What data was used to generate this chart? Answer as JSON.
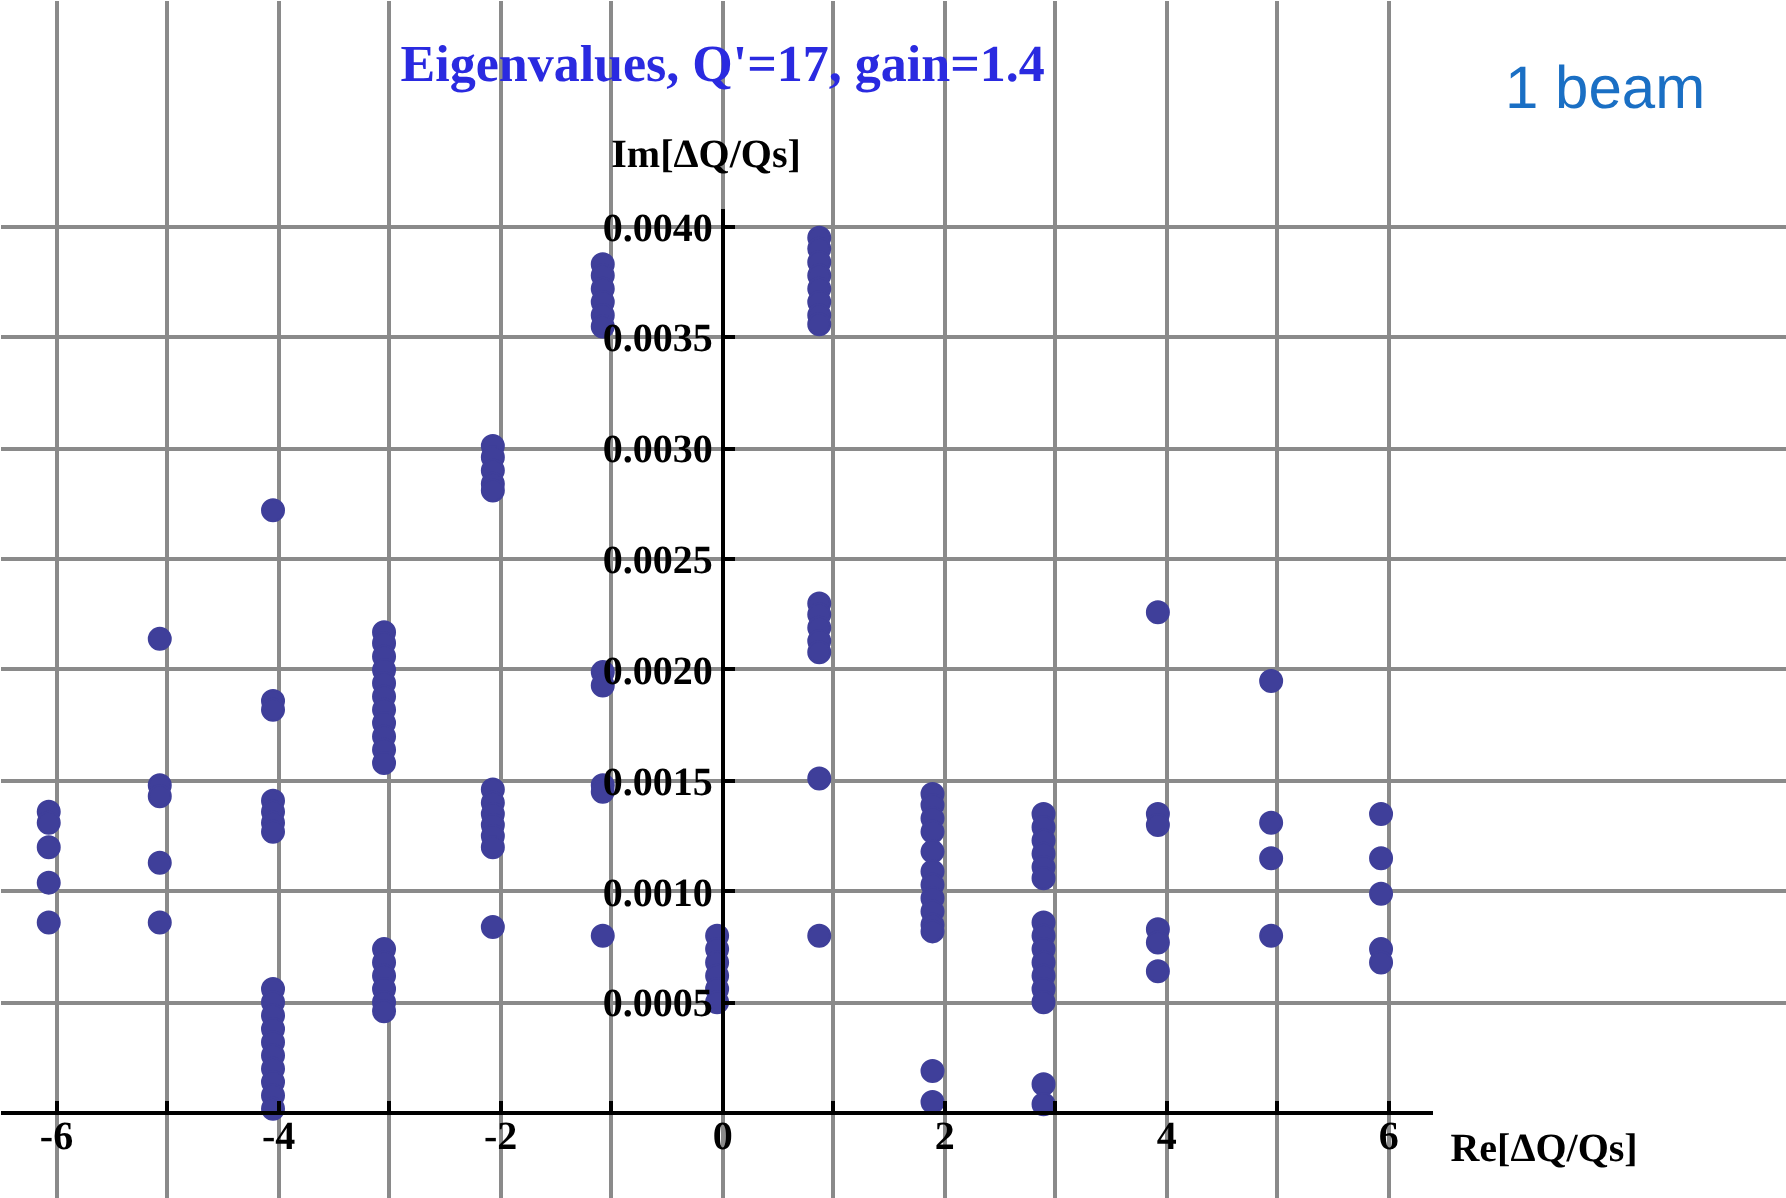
{
  "chart_data": {
    "type": "scatter",
    "title": "Eigenvalues, Q'=17, gain=1.4",
    "xlabel": "Re[ΔQ/Qs]",
    "ylabel": "Im[ΔQ/Qs]",
    "annotations": [
      "1 beam"
    ],
    "xlim": [
      -6.5,
      6.4
    ],
    "ylim": [
      0,
      0.00408
    ],
    "xticks": [
      -6,
      {
        "value": -5,
        "label": null
      },
      -4,
      {
        "value": -3,
        "label": null
      },
      -2,
      {
        "value": -1,
        "label": null
      },
      0,
      {
        "value": 1,
        "label": null
      },
      2,
      {
        "value": 3,
        "label": null
      },
      4,
      {
        "value": 5,
        "label": null
      },
      6
    ],
    "yticks": [
      {
        "value": 0.0005,
        "label": "0.0005"
      },
      {
        "value": 0.001,
        "label": "0.0010"
      },
      {
        "value": 0.0015,
        "label": "0.0015"
      },
      {
        "value": 0.002,
        "label": "0.0020"
      },
      {
        "value": 0.0025,
        "label": "0.0025"
      },
      {
        "value": 0.003,
        "label": "0.0030"
      },
      {
        "value": 0.0035,
        "label": "0.0035"
      },
      {
        "value": 0.004,
        "label": "0.0040"
      }
    ],
    "grid": true,
    "marker": "circle",
    "series": [
      {
        "color": "#3f3f9a",
        "x": [
          -6.07,
          -6.07,
          -6.07,
          -6.07,
          -6.07,
          -5.07,
          -5.07,
          -5.07,
          -5.07,
          -5.07,
          -4.05,
          -4.05,
          -4.05,
          -4.05,
          -4.05,
          -4.05,
          -4.05,
          -4.05,
          -4.05,
          -4.05,
          -4.05,
          -4.05,
          -4.05,
          -4.05,
          -4.05,
          -4.05,
          -4.05,
          -3.05,
          -3.05,
          -3.05,
          -3.05,
          -3.05,
          -3.05,
          -3.05,
          -3.05,
          -3.05,
          -3.05,
          -3.05,
          -3.05,
          -3.05,
          -3.05,
          -3.05,
          -3.05,
          -3.05,
          -2.07,
          -2.07,
          -2.07,
          -2.07,
          -2.07,
          -2.07,
          -2.07,
          -2.07,
          -2.07,
          -2.07,
          -2.07,
          -2.07,
          -1.08,
          -1.08,
          -1.08,
          -1.08,
          -1.08,
          -1.08,
          -1.08,
          -1.08,
          -1.08,
          -1.08,
          -1.08,
          -0.05,
          -0.05,
          -0.05,
          -0.05,
          -0.05,
          -0.05,
          0.87,
          0.87,
          0.87,
          0.87,
          0.87,
          0.87,
          0.87,
          0.87,
          0.87,
          0.87,
          0.87,
          0.87,
          0.87,
          0.87,
          0.87,
          1.89,
          1.89,
          1.89,
          1.89,
          1.89,
          1.89,
          1.89,
          1.89,
          1.89,
          1.89,
          1.89,
          1.89,
          1.89,
          2.89,
          2.89,
          2.89,
          2.89,
          2.89,
          2.89,
          2.89,
          2.89,
          2.89,
          2.89,
          2.89,
          2.89,
          2.89,
          2.89,
          2.89,
          3.92,
          3.92,
          3.92,
          3.92,
          3.92,
          3.92,
          4.94,
          4.94,
          4.94,
          4.94,
          5.93,
          5.93,
          5.93,
          5.93,
          5.93
        ],
        "values": [
          0.00136,
          0.00131,
          0.0012,
          0.00104,
          0.00086,
          0.00214,
          0.00148,
          0.00143,
          0.00113,
          0.00086,
          0.00272,
          0.00186,
          0.00182,
          0.00141,
          0.00136,
          0.00131,
          0.00127,
          0.00056,
          0.0005,
          0.00044,
          0.00038,
          0.00032,
          0.00026,
          0.0002,
          0.00014,
          8e-05,
          2e-05,
          0.00217,
          0.00212,
          0.00206,
          0.002,
          0.00194,
          0.00188,
          0.00182,
          0.00176,
          0.0017,
          0.00164,
          0.00158,
          0.00074,
          0.00068,
          0.00062,
          0.00056,
          0.0005,
          0.00046,
          0.00301,
          0.00296,
          0.0029,
          0.00284,
          0.00281,
          0.00146,
          0.0014,
          0.00135,
          0.0013,
          0.00125,
          0.0012,
          0.00084,
          0.00383,
          0.00378,
          0.00372,
          0.00366,
          0.0036,
          0.00355,
          0.00199,
          0.00193,
          0.00148,
          0.00145,
          0.0008,
          0.0008,
          0.00074,
          0.00068,
          0.00062,
          0.00056,
          0.0005,
          0.00395,
          0.0039,
          0.00384,
          0.00378,
          0.00372,
          0.00366,
          0.0036,
          0.00356,
          0.0023,
          0.00225,
          0.00219,
          0.00213,
          0.00208,
          0.00151,
          0.0008,
          0.00144,
          0.00139,
          0.00133,
          0.00127,
          0.00118,
          0.00109,
          0.00103,
          0.00097,
          0.00091,
          0.00085,
          0.00082,
          0.00019,
          5e-05,
          0.00135,
          0.00129,
          0.00123,
          0.00117,
          0.00111,
          0.00106,
          0.00086,
          0.0008,
          0.00074,
          0.00068,
          0.00062,
          0.00056,
          0.0005,
          0.00013,
          4e-05,
          0.00226,
          0.00135,
          0.0013,
          0.00083,
          0.00077,
          0.00064,
          0.00195,
          0.00131,
          0.00115,
          0.0008,
          0.00135,
          0.00115,
          0.00099,
          0.00074,
          0.00068
        ]
      }
    ]
  }
}
